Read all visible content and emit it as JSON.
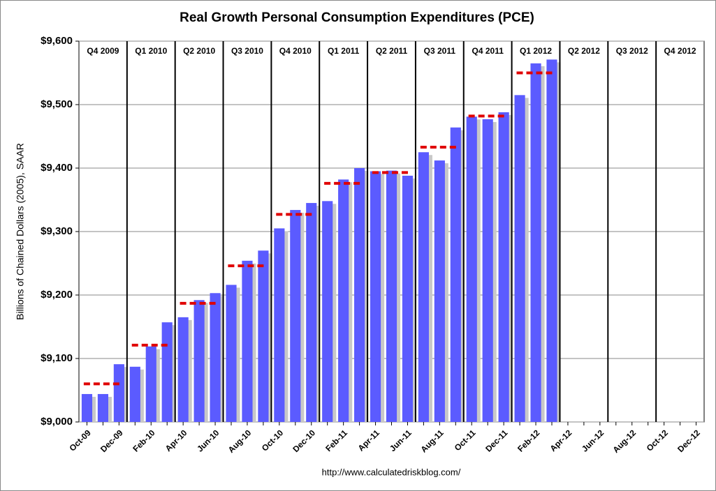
{
  "chart_data": {
    "type": "bar",
    "title": "Real Growth Personal Consumption Expenditures (PCE)",
    "y_label": "Billions of Chained Dollars (2005), SAAR",
    "source": "http://www.calculatedriskblog.com/",
    "color": "#5b5bff",
    "average_color": "#e00000",
    "categories": [
      "Oct-09",
      null,
      "Dec-09",
      null,
      "Feb-10",
      null,
      "Apr-10",
      null,
      "Jun-10",
      null,
      "Aug-10",
      null,
      "Oct-10",
      null,
      "Dec-10",
      null,
      "Feb-11",
      null,
      "Apr-11",
      null,
      "Jun-11",
      null,
      "Aug-11",
      null,
      "Oct-11",
      null,
      "Dec-11",
      null,
      "Feb-12",
      null,
      "Apr-12",
      null,
      "Jun-12",
      null,
      "Aug-12",
      null,
      "Oct-12",
      null,
      "Dec-12"
    ],
    "values": [
      9044,
      9044,
      9091,
      9087,
      9119,
      9157,
      9165,
      9192,
      9203,
      9216,
      9254,
      9270,
      9305,
      9334,
      9345,
      9348,
      9382,
      9400,
      9395,
      9396,
      9388,
      9425,
      9412,
      9464,
      9481,
      9477,
      9488,
      9515,
      9565,
      9571,
      null,
      null,
      null,
      null,
      null,
      null,
      null,
      null,
      null
    ],
    "quarters": [
      {
        "label": "Q4 2009",
        "average": 9060
      },
      {
        "label": "Q1 2010",
        "average": 9121
      },
      {
        "label": "Q2 2010",
        "average": 9187
      },
      {
        "label": "Q3 2010",
        "average": 9246
      },
      {
        "label": "Q4 2010",
        "average": 9327
      },
      {
        "label": "Q1 2011",
        "average": 9376
      },
      {
        "label": "Q2 2011",
        "average": 9393
      },
      {
        "label": "Q3 2011",
        "average": 9433
      },
      {
        "label": "Q4 2011",
        "average": 9482
      },
      {
        "label": "Q1 2012",
        "average": 9550
      },
      {
        "label": "Q2 2012",
        "average": null
      },
      {
        "label": "Q3 2012",
        "average": null
      },
      {
        "label": "Q4 2012",
        "average": null
      }
    ],
    "ylim": [
      9000,
      9600
    ],
    "yticks": [
      {
        "value": 9000,
        "label": "$9,000"
      },
      {
        "value": 9100,
        "label": "$9,100"
      },
      {
        "value": 9200,
        "label": "$9,200"
      },
      {
        "value": 9300,
        "label": "$9,300"
      },
      {
        "value": 9400,
        "label": "$9,400"
      },
      {
        "value": 9500,
        "label": "$9,500"
      },
      {
        "value": 9600,
        "label": "$9,600"
      }
    ],
    "grid": true
  }
}
